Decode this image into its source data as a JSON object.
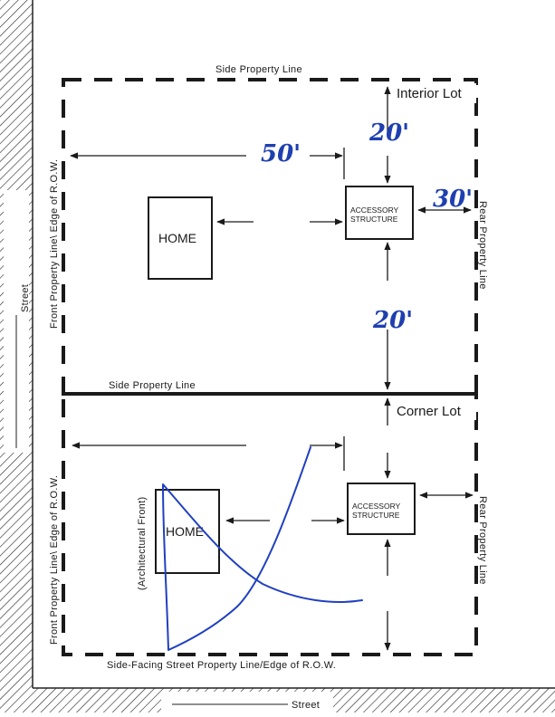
{
  "interior_lot": {
    "title": "Interior Lot",
    "top_label": "Side Property Line",
    "left_label": "Front Property Line\\ Edge of R.O.W.",
    "right_label": "Rear Property Line",
    "home_label": "HOME",
    "accessory_line1": "ACCESSORY",
    "accessory_line2": "STRUCTURE",
    "setback_front": "50'",
    "setback_side_top": "20'",
    "setback_rear": "30'",
    "setback_side_bottom": "20'"
  },
  "corner_lot": {
    "title": "Corner Lot",
    "top_label": "Side Property Line",
    "left_label": "Front Property Line\\ Edge of R.O.W.",
    "right_label": "Rear Property Line",
    "bottom_label": "Side-Facing Street Property Line/Edge of R.O.W.",
    "home_label": "HOME",
    "architectural_front": "(Architectural Front)",
    "accessory_line1": "ACCESSORY",
    "accessory_line2": "STRUCTURE"
  },
  "streets": {
    "left": "Street",
    "bottom": "Street"
  },
  "colors": {
    "ink": "#1a1a1a",
    "annotation": "#1f3fb0"
  }
}
